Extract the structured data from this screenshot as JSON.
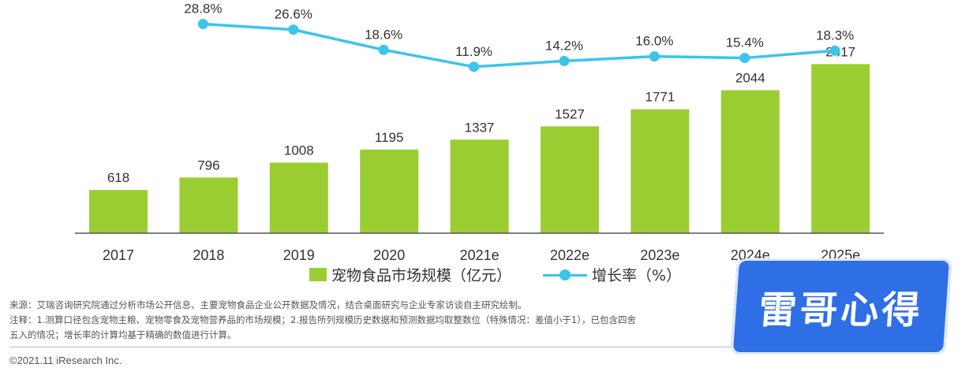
{
  "chart_data": {
    "type": "bar",
    "categories": [
      "2017",
      "2018",
      "2019",
      "2020",
      "2021e",
      "2022e",
      "2023e",
      "2024e",
      "2025e"
    ],
    "series": [
      {
        "name": "宠物食品市场规模（亿元）",
        "type": "bar",
        "color": "#9acd32",
        "values": [
          618,
          796,
          1008,
          1195,
          1337,
          1527,
          1771,
          2044,
          2417
        ]
      },
      {
        "name": "增长率（%）",
        "type": "line",
        "color": "#3cc4ea",
        "values": [
          null,
          28.8,
          26.6,
          18.6,
          11.9,
          14.2,
          16.0,
          15.4,
          18.3
        ],
        "labels": [
          "",
          "28.8%",
          "26.6%",
          "18.6%",
          "11.9%",
          "14.2%",
          "16.0%",
          "15.4%",
          "18.3%"
        ]
      }
    ],
    "legend_position": "bottom",
    "grid": false
  },
  "legend": {
    "bar_label": "宠物食品市场规模（亿元）",
    "line_label": "增长率（%）"
  },
  "notes": {
    "source": "来源：艾瑞咨询研究院通过分析市场公开信息、主要宠物食品企业公开数据及情况，结合桌面研究与企业专家访谈自主研究绘制。",
    "note_1": "注释：1.测算口径包含宠物主粮、宠物零食及宠物营养品的市场规模；2.报告所列规模历史数据和预测数据均取整数位（特殊情况：差值小于1），已包含四舍",
    "note_2": "五入的情况；增长率的计算均基于精确的数值进行计算。"
  },
  "copyright": "©2021.11 iResearch Inc.",
  "watermark": "雷哥心得"
}
